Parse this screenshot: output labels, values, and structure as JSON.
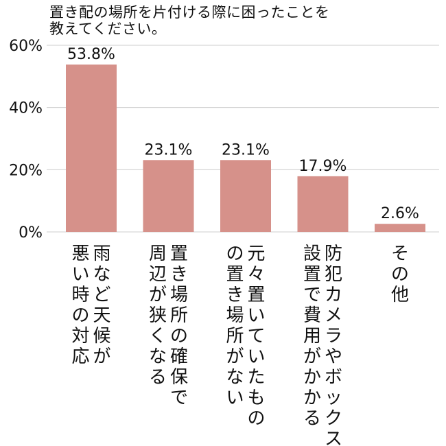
{
  "chart_data": {
    "type": "bar",
    "title_lines": [
      "置き配の場所を片付ける際に困ったことを",
      "教えてください。"
    ],
    "categories": [
      [
        "雨など天候が",
        "悪い時の対応"
      ],
      [
        "置き場所の確保で",
        "周辺が狭くなる"
      ],
      [
        "元々置いていたもの",
        "の置き場所がない"
      ],
      [
        "防犯カメラやボックス",
        "設置で費用がかかる"
      ],
      [
        "その他"
      ]
    ],
    "values": [
      53.8,
      23.1,
      23.1,
      17.9,
      2.6
    ],
    "value_labels": [
      "53.8%",
      "23.1%",
      "23.1%",
      "17.9%",
      "2.6%"
    ],
    "yticks": [
      {
        "value": 0,
        "label": "0%"
      },
      {
        "value": 20,
        "label": "20%"
      },
      {
        "value": 40,
        "label": "40%"
      },
      {
        "value": 60,
        "label": "60%"
      }
    ],
    "ylim": [
      0,
      60
    ],
    "grid": true,
    "bar_color": "#d6918a",
    "grid_color": "#cccccc"
  }
}
